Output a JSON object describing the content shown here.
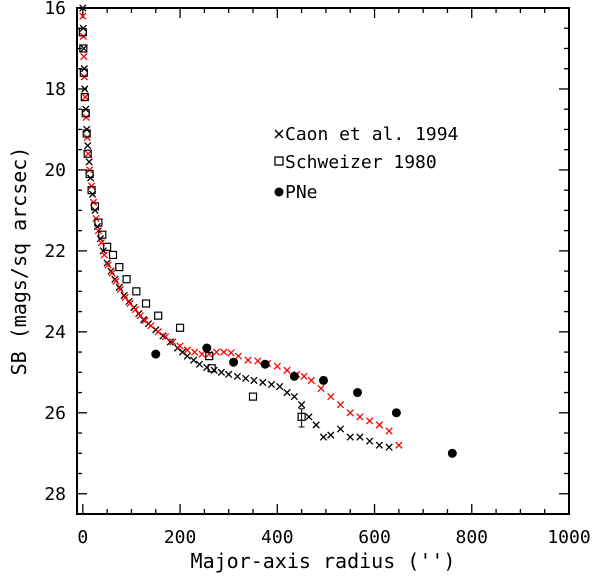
{
  "chart_data": {
    "type": "scatter",
    "title": "",
    "xlabel": "Major-axis radius ('')",
    "ylabel": "SB (mags/sq arcsec)",
    "xlim": [
      -12,
      1000
    ],
    "ylim": [
      28.5,
      16
    ],
    "y_inverted": true,
    "grid": false,
    "legend_position": "upper-right",
    "xticks": [
      "0",
      "200",
      "400",
      "600",
      "800",
      "1000"
    ],
    "xtick_values": [
      0,
      200,
      400,
      600,
      800,
      1000
    ],
    "yticks": [
      "16",
      "18",
      "20",
      "22",
      "24",
      "26",
      "28"
    ],
    "ytick_values": [
      16,
      18,
      20,
      22,
      24,
      26,
      28
    ],
    "series": [
      {
        "name": "Caon et al. 1994",
        "marker": "x",
        "color": "#000000",
        "points": [
          [
            0,
            16.0
          ],
          [
            1,
            16.5
          ],
          [
            2,
            17.0
          ],
          [
            3,
            17.5
          ],
          [
            4,
            18.0
          ],
          [
            6,
            18.5
          ],
          [
            8,
            19.0
          ],
          [
            10,
            19.4
          ],
          [
            13,
            19.8
          ],
          [
            16,
            20.2
          ],
          [
            20,
            20.6
          ],
          [
            25,
            21.0
          ],
          [
            30,
            21.4
          ],
          [
            36,
            21.7
          ],
          [
            42,
            22.0
          ],
          [
            50,
            22.3
          ],
          [
            58,
            22.5
          ],
          [
            66,
            22.7
          ],
          [
            75,
            22.9
          ],
          [
            85,
            23.1
          ],
          [
            95,
            23.25
          ],
          [
            105,
            23.4
          ],
          [
            115,
            23.55
          ],
          [
            125,
            23.7
          ],
          [
            135,
            23.8
          ],
          [
            150,
            23.95
          ],
          [
            165,
            24.1
          ],
          [
            180,
            24.25
          ],
          [
            195,
            24.4
          ],
          [
            205,
            24.5
          ],
          [
            215,
            24.6
          ],
          [
            228,
            24.7
          ],
          [
            240,
            24.8
          ],
          [
            255,
            24.88
          ],
          [
            270,
            24.95
          ],
          [
            285,
            25.0
          ],
          [
            300,
            25.05
          ],
          [
            318,
            25.1
          ],
          [
            335,
            25.15
          ],
          [
            352,
            25.2
          ],
          [
            370,
            25.25
          ],
          [
            388,
            25.3
          ],
          [
            405,
            25.35
          ],
          [
            420,
            25.5
          ],
          [
            435,
            25.6
          ],
          [
            450,
            25.8
          ],
          [
            465,
            26.1
          ],
          [
            480,
            26.3
          ],
          [
            495,
            26.6
          ],
          [
            510,
            26.55
          ],
          [
            530,
            26.4
          ],
          [
            550,
            26.6
          ],
          [
            570,
            26.6
          ],
          [
            590,
            26.7
          ],
          [
            610,
            26.8
          ],
          [
            630,
            26.85
          ]
        ]
      },
      {
        "name": "Caon et al. 1994 (red)",
        "marker": "x",
        "color": "#ff0000",
        "points": [
          [
            0,
            16.2
          ],
          [
            1,
            16.7
          ],
          [
            2,
            17.2
          ],
          [
            3,
            17.7
          ],
          [
            5,
            18.2
          ],
          [
            7,
            18.7
          ],
          [
            9,
            19.2
          ],
          [
            11,
            19.6
          ],
          [
            14,
            20.0
          ],
          [
            18,
            20.4
          ],
          [
            22,
            20.8
          ],
          [
            27,
            21.2
          ],
          [
            32,
            21.5
          ],
          [
            38,
            21.8
          ],
          [
            44,
            22.1
          ],
          [
            52,
            22.35
          ],
          [
            60,
            22.55
          ],
          [
            68,
            22.75
          ],
          [
            77,
            22.95
          ],
          [
            87,
            23.15
          ],
          [
            97,
            23.3
          ],
          [
            108,
            23.45
          ],
          [
            118,
            23.6
          ],
          [
            128,
            23.72
          ],
          [
            140,
            23.85
          ],
          [
            155,
            24.0
          ],
          [
            170,
            24.12
          ],
          [
            185,
            24.25
          ],
          [
            200,
            24.35
          ],
          [
            215,
            24.45
          ],
          [
            230,
            24.5
          ],
          [
            245,
            24.55
          ],
          [
            260,
            24.55
          ],
          [
            275,
            24.5
          ],
          [
            290,
            24.5
          ],
          [
            305,
            24.52
          ],
          [
            320,
            24.6
          ],
          [
            340,
            24.7
          ],
          [
            360,
            24.72
          ],
          [
            380,
            24.78
          ],
          [
            400,
            24.85
          ],
          [
            420,
            24.95
          ],
          [
            440,
            25.05
          ],
          [
            455,
            25.1
          ],
          [
            470,
            25.2
          ],
          [
            490,
            25.4
          ],
          [
            510,
            25.6
          ],
          [
            530,
            25.8
          ],
          [
            550,
            26.0
          ],
          [
            570,
            26.1
          ],
          [
            590,
            26.2
          ],
          [
            610,
            26.3
          ],
          [
            630,
            26.45
          ],
          [
            650,
            26.8
          ]
        ]
      },
      {
        "name": "Schweizer 1980",
        "marker": "open-square",
        "color": "#000000",
        "points": [
          [
            0,
            16.6
          ],
          [
            1,
            17.0
          ],
          [
            2,
            17.6
          ],
          [
            4,
            18.2
          ],
          [
            6,
            18.6
          ],
          [
            8,
            19.1
          ],
          [
            10,
            19.6
          ],
          [
            14,
            20.1
          ],
          [
            18,
            20.5
          ],
          [
            25,
            20.9
          ],
          [
            32,
            21.3
          ],
          [
            40,
            21.6
          ],
          [
            50,
            21.9
          ],
          [
            62,
            22.1
          ],
          [
            75,
            22.4
          ],
          [
            90,
            22.7
          ],
          [
            110,
            23.0
          ],
          [
            130,
            23.3
          ],
          [
            155,
            23.6
          ],
          [
            200,
            23.9
          ],
          [
            260,
            24.6
          ],
          [
            265,
            24.9
          ],
          [
            350,
            25.6
          ],
          [
            450,
            26.1
          ]
        ]
      },
      {
        "name": "PNe",
        "marker": "filled-circle",
        "color": "#000000",
        "points": [
          [
            150,
            24.55
          ],
          [
            255,
            24.4
          ],
          [
            310,
            24.75
          ],
          [
            375,
            24.8
          ],
          [
            435,
            25.1
          ],
          [
            495,
            25.2
          ],
          [
            565,
            25.5
          ],
          [
            645,
            26.0
          ],
          [
            760,
            27.0
          ]
        ]
      }
    ],
    "legend": [
      {
        "marker": "x",
        "label": "Caon et al. 1994"
      },
      {
        "marker": "open-square",
        "label": "Schweizer 1980"
      },
      {
        "marker": "filled-circle",
        "label": "PNe"
      }
    ]
  }
}
